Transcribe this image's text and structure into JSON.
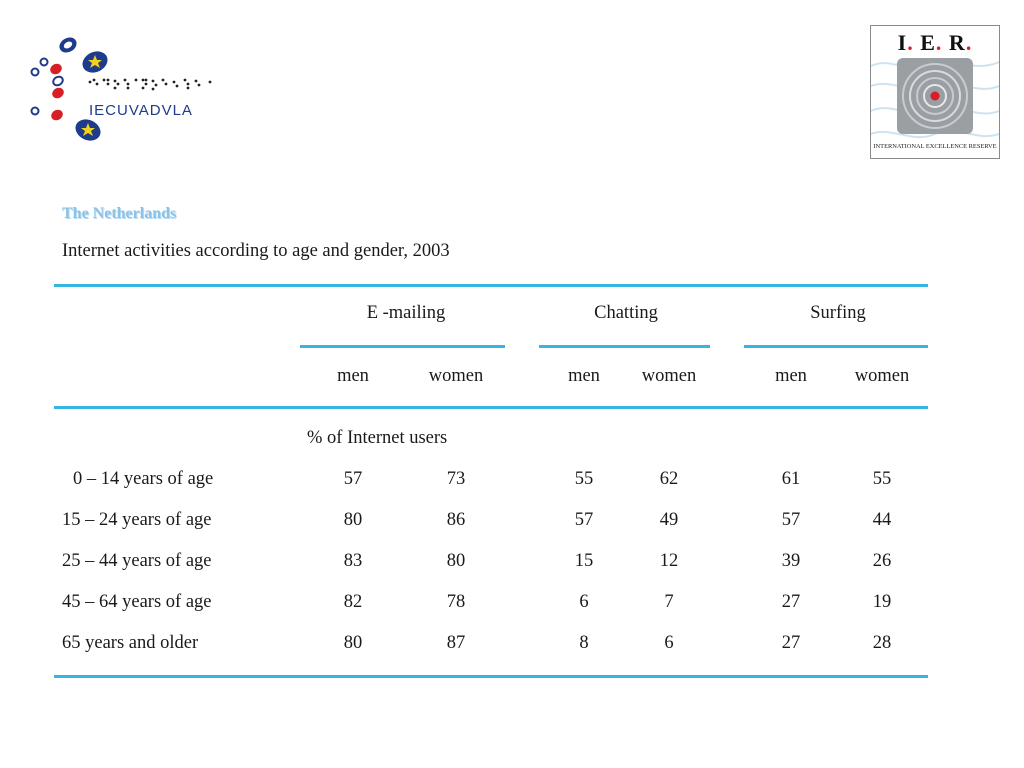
{
  "branding": {
    "left_logo_text": "IECUVADVLA",
    "left_logo_braille": "braille-dots",
    "right_logo": {
      "letters": [
        "I",
        "E",
        "R"
      ],
      "caption": "INTERNATIONAL EXCELLENCE RESERVE",
      "accent_color": "#d61f26"
    }
  },
  "country": "The Netherlands",
  "subtitle": "Internet activities according to age and gender, 2003",
  "table": {
    "groups": [
      {
        "label": "E -mailing",
        "subcolumns": [
          "men",
          "women"
        ]
      },
      {
        "label": "Chatting",
        "subcolumns": [
          "men",
          "women"
        ]
      },
      {
        "label": "Surfing",
        "subcolumns": [
          "men",
          "women"
        ]
      }
    ],
    "unit_label": "% of Internet users",
    "rows": [
      {
        "label": "0 – 14 years of age",
        "values": [
          "57",
          "73",
          "55",
          "62",
          "61",
          "55"
        ]
      },
      {
        "label": "15 – 24 years of age",
        "values": [
          "80",
          "86",
          "57",
          "49",
          "57",
          "44"
        ]
      },
      {
        "label": "25 – 44 years of age",
        "values": [
          "83",
          "80",
          "15",
          "12",
          "39",
          "26"
        ]
      },
      {
        "label": "45 – 64 years of age",
        "values": [
          "82",
          "78",
          "6",
          "7",
          "27",
          "19"
        ]
      },
      {
        "label": "65 years and older",
        "values": [
          "80",
          "87",
          "8",
          "6",
          "27",
          "28"
        ]
      }
    ]
  },
  "colors": {
    "rule": "#35b5df",
    "title": "#8cc2e6",
    "text": "#1a1a1a"
  }
}
